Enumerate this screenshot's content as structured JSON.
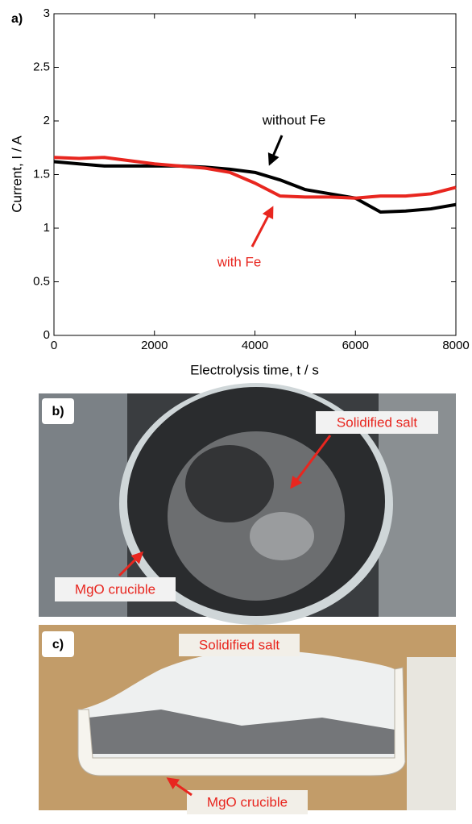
{
  "chart_data": {
    "type": "line",
    "panel_label": "a)",
    "x_label": "Electrolysis time, t / s",
    "y_label": "Current, I / A",
    "x": [
      0,
      500,
      1000,
      1500,
      2000,
      2500,
      3000,
      3500,
      4000,
      4500,
      5000,
      5500,
      6000,
      6500,
      7000,
      7500,
      8000
    ],
    "series": [
      {
        "name": "without Fe",
        "color": "#000000",
        "values": [
          1.62,
          1.6,
          1.58,
          1.58,
          1.58,
          1.58,
          1.57,
          1.55,
          1.52,
          1.45,
          1.36,
          1.32,
          1.28,
          1.15,
          1.16,
          1.18,
          1.22
        ]
      },
      {
        "name": "with Fe",
        "color": "#e8261f",
        "values": [
          1.66,
          1.65,
          1.66,
          1.63,
          1.6,
          1.58,
          1.56,
          1.52,
          1.42,
          1.3,
          1.29,
          1.29,
          1.28,
          1.3,
          1.3,
          1.32,
          1.38
        ]
      }
    ],
    "xlim": [
      0,
      8000
    ],
    "ylim": [
      0,
      3
    ],
    "xticks": [
      0,
      2000,
      4000,
      6000,
      8000
    ],
    "yticks": [
      0,
      0.5,
      1,
      1.5,
      2,
      2.5,
      3
    ],
    "grid": false
  },
  "photo_b": {
    "panel_label": "b)",
    "annotations": [
      "Solidified salt",
      "MgO crucible"
    ]
  },
  "photo_c": {
    "panel_label": "c)",
    "annotations": [
      "Solidified salt",
      "MgO crucible"
    ]
  }
}
